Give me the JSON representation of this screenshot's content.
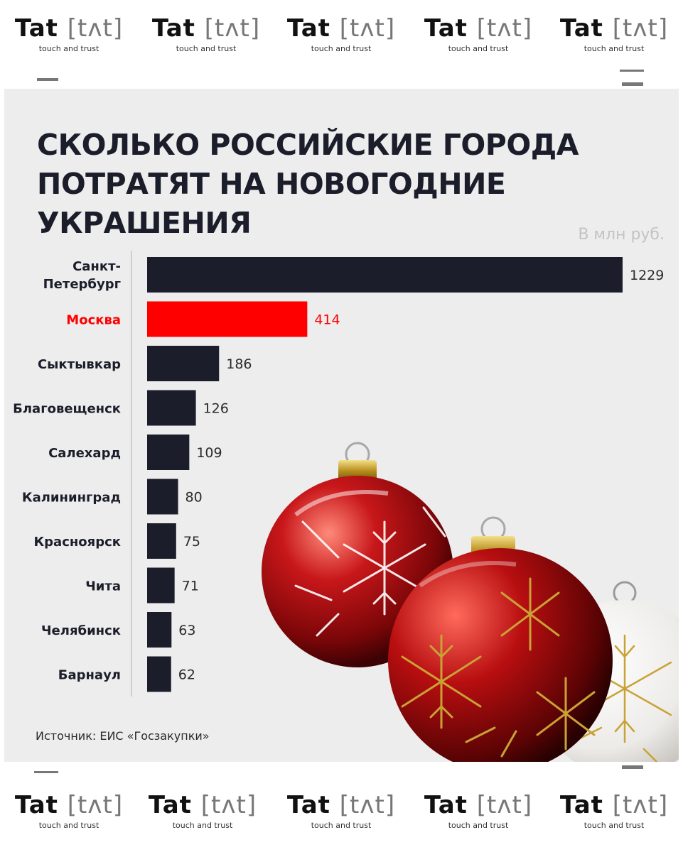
{
  "watermark": {
    "brand_main": "Tat",
    "brand_logo": "[tʌt]",
    "tagline": "touch and trust"
  },
  "header": {
    "title": "СКОЛЬКО РОССИЙСКИЕ ГОРОДА ПОТРАТЯТ НА НОВОГОДНИЕ УКРАШЕНИЯ",
    "unit": "В млн руб."
  },
  "footer": {
    "source": "Источник: ЕИС «Госзакупки»"
  },
  "colors": {
    "bar": "#1b1d2a",
    "highlight": "#ff0000",
    "background": "#ededed",
    "text": "#1b1d2a"
  },
  "chart_data": {
    "type": "bar",
    "orientation": "horizontal",
    "title": "СКОЛЬКО РОССИЙСКИЕ ГОРОДА ПОТРАТЯТ НА НОВОГОДНИЕ УКРАШЕНИЯ",
    "unit": "В млн руб.",
    "categories": [
      "Санкт-Петербург",
      "Москва",
      "Сыктывкар",
      "Благовещенск",
      "Салехард",
      "Калининград",
      "Красноярск",
      "Чита",
      "Челябинск",
      "Барнаул"
    ],
    "values": [
      1229,
      414,
      186,
      126,
      109,
      80,
      75,
      71,
      63,
      62
    ],
    "highlight_index": 1,
    "xlim": [
      0,
      1229
    ],
    "grid": false,
    "legend": "none"
  }
}
